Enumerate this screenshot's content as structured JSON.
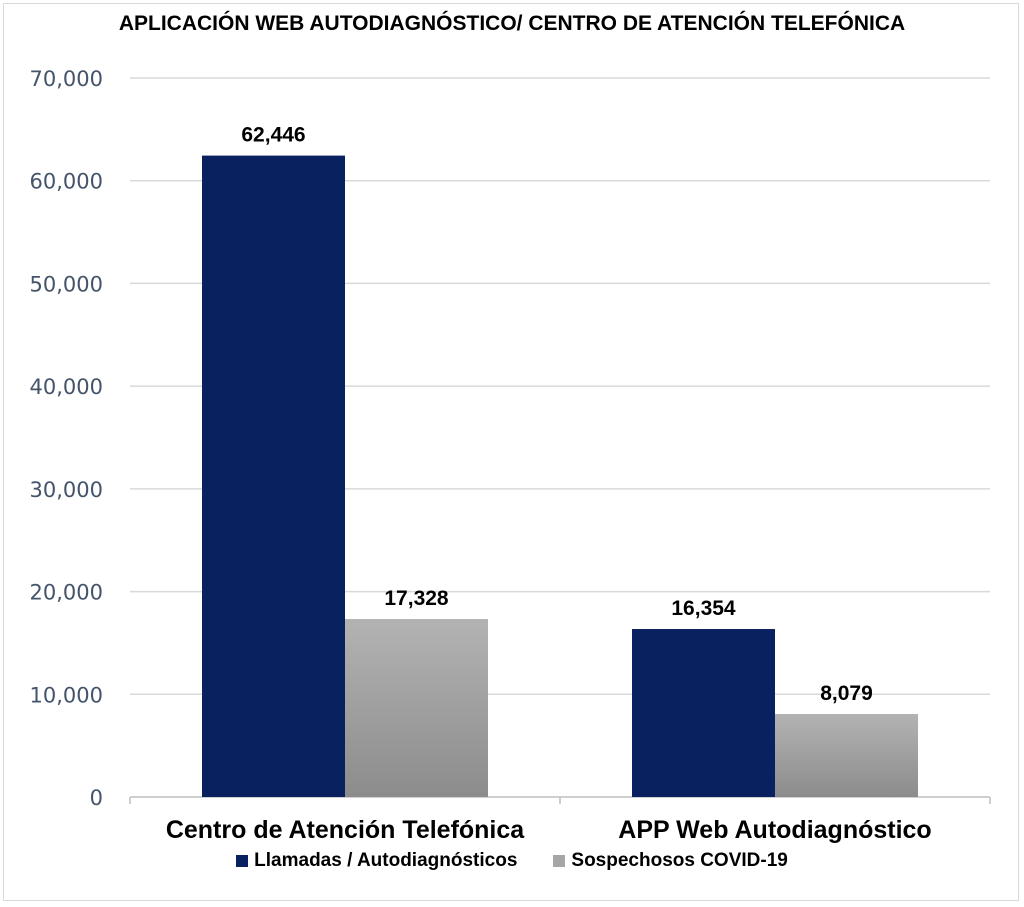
{
  "chart_data": {
    "type": "bar",
    "title": "APLICACIÓN WEB AUTODIAGNÓSTICO/ CENTRO DE ATENCIÓN TELEFÓNICA",
    "categories": [
      "Centro de Atención Telefónica",
      "APP Web Autodiagnóstico"
    ],
    "series": [
      {
        "name": "Llamadas / Autodiagnósticos",
        "values": [
          62446,
          16354
        ],
        "labels": [
          "62,446",
          "16,354"
        ],
        "color": "#0a2160"
      },
      {
        "name": "Sospechosos COVID-19",
        "values": [
          17328,
          8079
        ],
        "labels": [
          "17,328",
          "8,079"
        ],
        "color": "#a6a6a6"
      }
    ],
    "ylim": [
      0,
      70000
    ],
    "yticks": [
      0,
      10000,
      20000,
      30000,
      40000,
      50000,
      60000,
      70000
    ],
    "ytick_labels": [
      "0",
      "10,000",
      "20,000",
      "30,000",
      "40,000",
      "50,000",
      "60,000",
      "70,000"
    ],
    "xlabel": "",
    "ylabel": "",
    "grid": true,
    "legend_position": "bottom"
  }
}
